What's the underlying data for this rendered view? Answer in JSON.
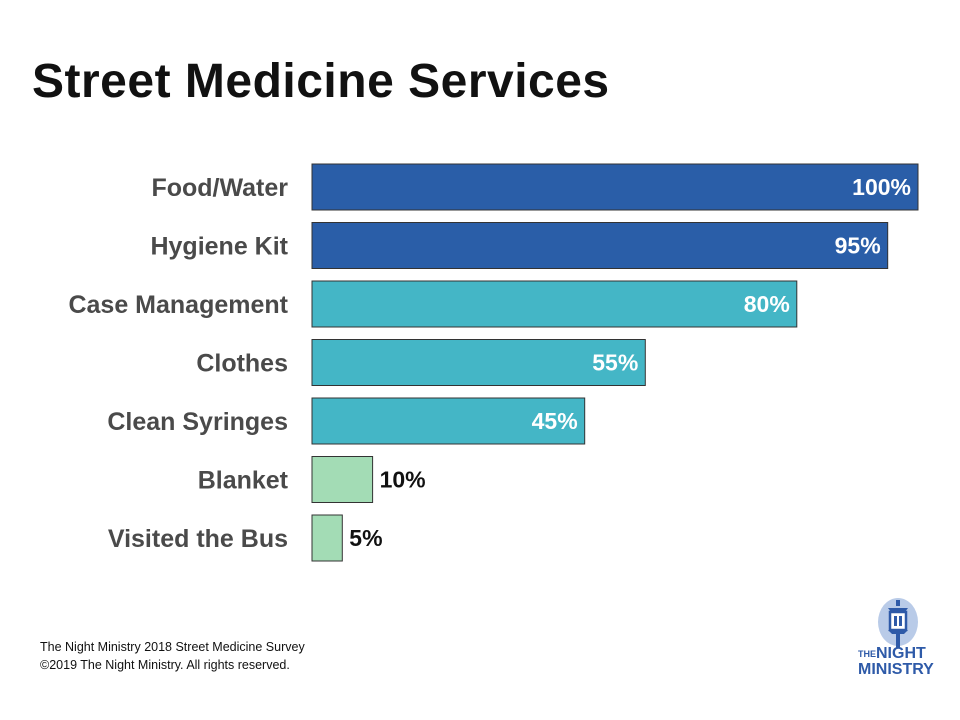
{
  "chart_data": {
    "type": "bar",
    "orientation": "horizontal",
    "title": "Street Medicine Services",
    "categories": [
      "Food/Water",
      "Hygiene Kit",
      "Case Management",
      "Clothes",
      "Clean Syringes",
      "Blanket",
      "Visited the Bus"
    ],
    "values": [
      100,
      95,
      80,
      55,
      45,
      10,
      5
    ],
    "value_labels": [
      "100%",
      "95%",
      "80%",
      "55%",
      "45%",
      "10%",
      "5%"
    ],
    "bar_colors": [
      "#2a5ea8",
      "#2a5ea8",
      "#44b6c6",
      "#44b6c6",
      "#44b6c6",
      "#a3dcb5",
      "#a3dcb5"
    ],
    "xlim": [
      0,
      100
    ],
    "xlabel": "",
    "ylabel": "",
    "grid": false,
    "legend": "none"
  },
  "footer": {
    "line1": "The Night Ministry 2018  Street Medicine Survey",
    "line2": "©2019 The Night Ministry. All rights reserved."
  },
  "logo": {
    "the": "THE",
    "night": "NIGHT",
    "ministry": "MINISTRY"
  },
  "colors": {
    "label_inside": "#ffffff",
    "label_outside": "#111111",
    "bar_stroke": "#333333",
    "logo_blue": "#2e5aa8"
  }
}
